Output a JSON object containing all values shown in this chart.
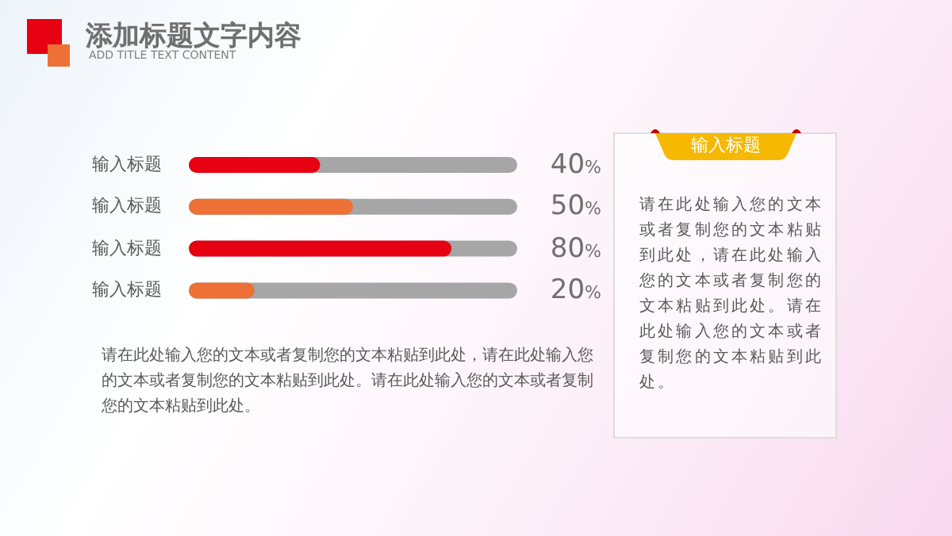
{
  "chart_data": {
    "type": "bar",
    "orientation": "horizontal",
    "title": "添加标题文字内容",
    "subtitle": "ADD TITLE TEXT CONTENT",
    "categories": [
      "输入标题",
      "输入标题",
      "输入标题",
      "输入标题"
    ],
    "values": [
      40,
      50,
      80,
      20
    ],
    "colors": [
      "#e60012",
      "#ed7036",
      "#e60012",
      "#ed7036"
    ],
    "xlim": [
      0,
      100
    ],
    "value_labels": [
      "40%",
      "50%",
      "80%",
      "20%"
    ],
    "annotations": [
      "请在此处输入您的文本或者复制您的文本粘贴到此处，请在此处输入您的文本或者复制您的文本粘贴到此处。请在此处输入您的文本或者复制您的文本粘贴到此处。",
      "输入标题",
      "请在此处输入您的文本或者复制您的文本粘贴到此处，请在此处输入您的文本或者复制您的文本粘贴到此处。请在此处输入您的文本或者复制您的文本粘贴到此处。"
    ]
  }
}
